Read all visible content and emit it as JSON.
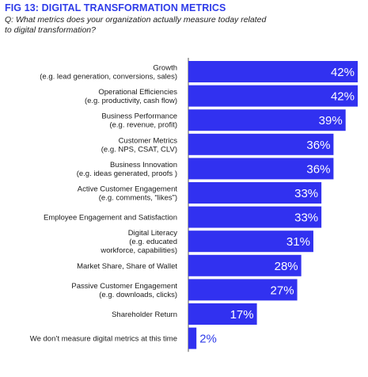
{
  "header": {
    "title": "FIG 13: DIGITAL TRANSFORMATION METRICS",
    "question": "Q: What metrics does your organization actually measure today related to digital transformation?"
  },
  "colors": {
    "bar": "#3131f0",
    "accent": "#2f3ce8",
    "axis": "#555555"
  },
  "chart_data": {
    "type": "bar",
    "orientation": "horizontal",
    "title": "",
    "xlabel": "",
    "ylabel": "",
    "xlim": [
      0,
      42
    ],
    "grid": false,
    "legend": "none",
    "categories": [
      [
        "Growth",
        "(e.g. lead generation, conversions, sales)"
      ],
      [
        "Operational Efficiencies",
        "(e.g. productivity, cash flow)"
      ],
      [
        "Business Performance",
        "(e.g. revenue, profit)"
      ],
      [
        "Customer Metrics",
        "(e.g. NPS, CSAT, CLV)"
      ],
      [
        "Business Innovation",
        "(e.g. ideas generated, proofs )"
      ],
      [
        "Active Customer Engagement",
        "(e.g. comments, “likes”)"
      ],
      [
        "Employee Engagement and Satisfaction"
      ],
      [
        "Digital Literacy",
        "(e.g. educated",
        "workforce, capabilities)"
      ],
      [
        "Market Share, Share of Wallet"
      ],
      [
        "Passive Customer Engagement",
        "(e.g. downloads, clicks)"
      ],
      [
        "Shareholder Return"
      ],
      [
        "We don’t measure digital metrics at this time"
      ]
    ],
    "values": [
      42,
      42,
      39,
      36,
      36,
      33,
      33,
      31,
      28,
      27,
      17,
      2
    ],
    "value_labels": [
      "42%",
      "42%",
      "39%",
      "36%",
      "36%",
      "33%",
      "33%",
      "31%",
      "28%",
      "27%",
      "17%",
      "2%"
    ]
  }
}
